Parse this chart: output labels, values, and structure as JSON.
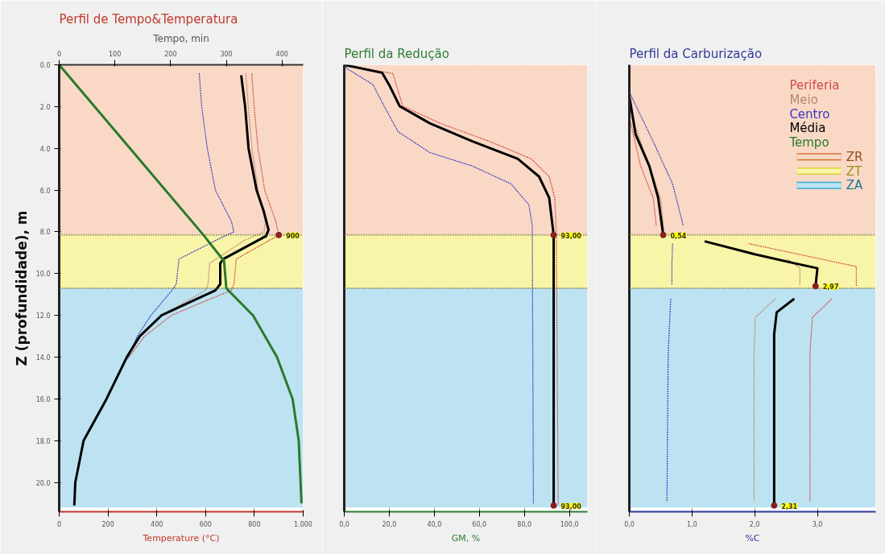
{
  "chart_data": [
    {
      "type": "line",
      "title": "Perfil de Tempo&Temperatura",
      "xlabel": "Temperature (°C)",
      "x2label": "Tempo, min",
      "ylabel": "Z (profundidade), m",
      "xlim": [
        0,
        1000
      ],
      "xticks": [
        0,
        200,
        400,
        600,
        800,
        {
          "value": 1000,
          "label": "1.000"
        }
      ],
      "x2lim": [
        0,
        438
      ],
      "x2ticks": [
        0,
        100,
        200,
        300,
        400
      ],
      "ylim": [
        21.4,
        0
      ],
      "yticks": [
        {
          "value": 0,
          "label": "0.0"
        },
        {
          "value": 2,
          "label": "2.0"
        },
        {
          "value": 4,
          "label": "4.0"
        },
        {
          "value": 6,
          "label": "6.0"
        },
        {
          "value": 8,
          "label": "8.0"
        },
        {
          "value": 10,
          "label": "10.0"
        },
        {
          "value": 12,
          "label": "12.0"
        },
        {
          "value": 14,
          "label": "14.0"
        },
        {
          "value": 16,
          "label": "16.0"
        },
        {
          "value": 18,
          "label": "18.0"
        },
        {
          "value": 20,
          "label": "20.0"
        }
      ],
      "grid": true,
      "bands": [
        {
          "axis": "y",
          "from": 0,
          "to": 8.15,
          "color": "#f9d9c6"
        },
        {
          "axis": "y",
          "from": 8.15,
          "to": 10.7,
          "color": "#f9f5a8"
        },
        {
          "axis": "y",
          "from": 10.7,
          "to": 21.2,
          "color": "#bde3f2"
        }
      ],
      "ref_lines": [
        {
          "axis": "y",
          "value": 8.15,
          "color": "#606030",
          "line_style": "dotted"
        },
        {
          "axis": "y",
          "value": 10.7,
          "color": "#606030",
          "line_style": "dotted"
        }
      ],
      "series": [
        {
          "name": "Periferia",
          "color": "#d04a4a",
          "line_style": "dashed",
          "x": [
            789,
            799,
            815,
            842,
            888,
            900,
            726,
            716,
            706,
            560,
            460,
            350,
            285
          ],
          "values": [
            0.4,
            2,
            4,
            6,
            7.5,
            8.15,
            9.3,
            10.5,
            10.8,
            11.5,
            12,
            13,
            14
          ]
        },
        {
          "name": "Meio",
          "color": "#b8876a",
          "line_style": "dashed",
          "x": [
            765,
            775,
            790,
            815,
            845,
            840,
            760,
            617,
            610,
            600,
            420,
            330,
            278
          ],
          "values": [
            0.4,
            2,
            4,
            6,
            7.5,
            8.0,
            8.4,
            9.5,
            10.5,
            10.8,
            12,
            13,
            14
          ]
        },
        {
          "name": "Centro",
          "color": "#3a3ac0",
          "line_style": "dashed",
          "x": [
            574,
            584,
            607,
            640,
            706,
            716,
            660,
            491,
            480,
            462,
            376,
            320,
            279
          ],
          "values": [
            0.4,
            2,
            4,
            6,
            7.5,
            8.0,
            8.3,
            9.3,
            10.5,
            10.8,
            12,
            13,
            14.1
          ]
        },
        {
          "name": "Média",
          "color": "#000000",
          "line_style": "solid",
          "x": [
            746,
            762,
            776,
            809,
            838,
            858,
            848,
            673,
            660,
            660,
            640,
            419,
            330,
            277,
            194,
            100,
            66,
            62
          ],
          "values": [
            0.5,
            2,
            4,
            6,
            7,
            7.9,
            8.2,
            9.3,
            9.5,
            10.5,
            10.8,
            12,
            13,
            14,
            16,
            18,
            20,
            21.1
          ]
        },
        {
          "name": "Tempo",
          "color": "#2a7a2a",
          "line_style": "solid",
          "axis": "x2",
          "x": [
            0,
            259,
            296,
            300,
            348,
            391,
            419,
            430,
            435
          ],
          "values": [
            0,
            8.15,
            9.4,
            10.7,
            12,
            14,
            16,
            18,
            21
          ]
        }
      ],
      "annotations": [
        {
          "text": "900",
          "x": 900,
          "y": 8.15
        }
      ]
    },
    {
      "type": "line",
      "title": "Perfil da Redução",
      "xlabel": "GM, %",
      "xlim": [
        0,
        108
      ],
      "xticks": [
        {
          "value": 0,
          "label": "0,0"
        },
        {
          "value": 20,
          "label": "20,0"
        },
        {
          "value": 40,
          "label": "40,0"
        },
        {
          "value": 60,
          "label": "60,0"
        },
        {
          "value": 80,
          "label": "80,0"
        },
        {
          "value": 100,
          "label": "100,0"
        }
      ],
      "ylim": [
        21.4,
        0
      ],
      "yticks": [
        0,
        2,
        4,
        6,
        8,
        10,
        12,
        14,
        16,
        18,
        20
      ],
      "tick_labels": "x",
      "grid": true,
      "bands": [
        {
          "axis": "y",
          "from": 0,
          "to": 8.15,
          "color": "#f9d9c6"
        },
        {
          "axis": "y",
          "from": 8.15,
          "to": 10.7,
          "color": "#f9f5a8"
        },
        {
          "axis": "y",
          "from": 10.7,
          "to": 21.2,
          "color": "#bde3f2"
        }
      ],
      "ref_lines": [
        {
          "axis": "y",
          "value": 8.15,
          "color": "#606030",
          "line_style": "dotted"
        },
        {
          "axis": "y",
          "value": 10.7,
          "color": "#606030",
          "line_style": "dotted"
        }
      ],
      "series": [
        {
          "color": "#d04a4a",
          "line_style": "dashed",
          "x": [
            0,
            21.6,
            26,
            42.6,
            64.6,
            83,
            91,
            93.5,
            94.2,
            95
          ],
          "values": [
            0,
            0.42,
            1.98,
            2.8,
            3.67,
            4.5,
            5.35,
            6.37,
            8.15,
            21.1
          ]
        },
        {
          "color": "#3a3ac0",
          "line_style": "dashed",
          "x": [
            0,
            1.5,
            12.8,
            16.8,
            23.9,
            38,
            57,
            74,
            82,
            83.5,
            84
          ],
          "values": [
            0,
            0.2,
            0.95,
            1.8,
            3.2,
            4.2,
            4.85,
            5.7,
            6.7,
            7.7,
            21.0
          ]
        },
        {
          "color": "#000000",
          "line_style": "solid",
          "x": [
            0,
            16.8,
            20,
            24.6,
            38,
            57,
            77,
            86.5,
            91,
            93,
            93
          ],
          "values": [
            0,
            0.38,
            0.97,
            1.98,
            2.8,
            3.67,
            4.5,
            5.35,
            6.37,
            8.15,
            21.1
          ]
        }
      ],
      "annotations": [
        {
          "text": "93,00",
          "x": 93,
          "y": 8.15
        },
        {
          "text": "93,00",
          "x": 93,
          "y": 21.1
        }
      ]
    },
    {
      "type": "line",
      "title": "Perfil da Carburização",
      "xlabel": "%C",
      "xlim": [
        0,
        3.93
      ],
      "xticks": [
        {
          "value": 0,
          "label": "0,0"
        },
        {
          "value": 1,
          "label": "1,0"
        },
        {
          "value": 2,
          "label": "2,0"
        },
        {
          "value": 3,
          "label": "3,0"
        }
      ],
      "ylim": [
        21.4,
        0
      ],
      "yticks": [
        0,
        2,
        4,
        6,
        8,
        10,
        12,
        14,
        16,
        18,
        20
      ],
      "tick_labels": "x",
      "grid": true,
      "legend": "top right",
      "bands": [
        {
          "axis": "y",
          "from": 0,
          "to": 8.15,
          "label": "ZR",
          "color": "#f9d9c6"
        },
        {
          "axis": "y",
          "from": 8.15,
          "to": 10.7,
          "label": "ZT",
          "color": "#f9f5a8"
        },
        {
          "axis": "y",
          "from": 10.7,
          "to": 21.2,
          "label": "ZA",
          "color": "#bde3f2"
        }
      ],
      "ref_lines": [
        {
          "axis": "y",
          "value": 8.15,
          "color": "#606030",
          "line_style": "dotted"
        },
        {
          "axis": "y",
          "value": 10.7,
          "color": "#606030",
          "line_style": "dotted"
        }
      ],
      "series": [
        {
          "color": "#d04a4a",
          "line_style": "dashed",
          "x": [
            0,
            0.18,
            0.38,
            0.43,
            null,
            1.9,
            3.62,
            3.62,
            null,
            3.23,
            2.92,
            2.88,
            2.88
          ],
          "values": [
            2.5,
            4.85,
            6.37,
            7.7,
            null,
            8.56,
            9.66,
            10.6,
            null,
            11.2,
            12.1,
            13.8,
            20.9
          ]
        },
        {
          "color": "#b8876a",
          "line_style": "dashed",
          "x": [
            0.04,
            0.5,
            0.55,
            null,
            2.52,
            2.72,
            2.72,
            null,
            2.33,
            2.01,
            1.99,
            1.99
          ],
          "values": [
            2.5,
            6.4,
            7.9,
            null,
            9.3,
            9.74,
            10.55,
            null,
            11.2,
            12.1,
            13.8,
            20.9
          ]
        },
        {
          "color": "#3a3ac0",
          "line_style": "dashed",
          "x": [
            0,
            0.38,
            0.69,
            0.86,
            null,
            0.69,
            0.68,
            0.68,
            null,
            0.66,
            0.62,
            0.6
          ],
          "values": [
            1.3,
            3.67,
            5.7,
            7.7,
            null,
            8.56,
            9.4,
            10.55,
            null,
            11.2,
            13.8,
            20.9
          ]
        },
        {
          "color": "#000000",
          "line_style": "solid",
          "x": [
            0,
            0.1,
            0.32,
            0.46,
            0.52,
            0.54,
            null,
            1.2,
            2.0,
            2.63,
            3.0,
            2.97,
            null,
            2.63,
            2.35,
            2.31,
            2.31,
            2.31
          ],
          "values": [
            1.5,
            3.33,
            4.85,
            6.37,
            7.7,
            8.14,
            null,
            8.45,
            9.07,
            9.5,
            9.74,
            10.6,
            null,
            11.2,
            11.85,
            12.9,
            15.5,
            21.1
          ]
        }
      ],
      "annotations": [
        {
          "text": "0,54",
          "x": 0.54,
          "y": 8.15
        },
        {
          "text": "2,97",
          "x": 2.97,
          "y": 10.6
        },
        {
          "text": "2,31",
          "x": 2.31,
          "y": 21.1
        }
      ]
    }
  ]
}
